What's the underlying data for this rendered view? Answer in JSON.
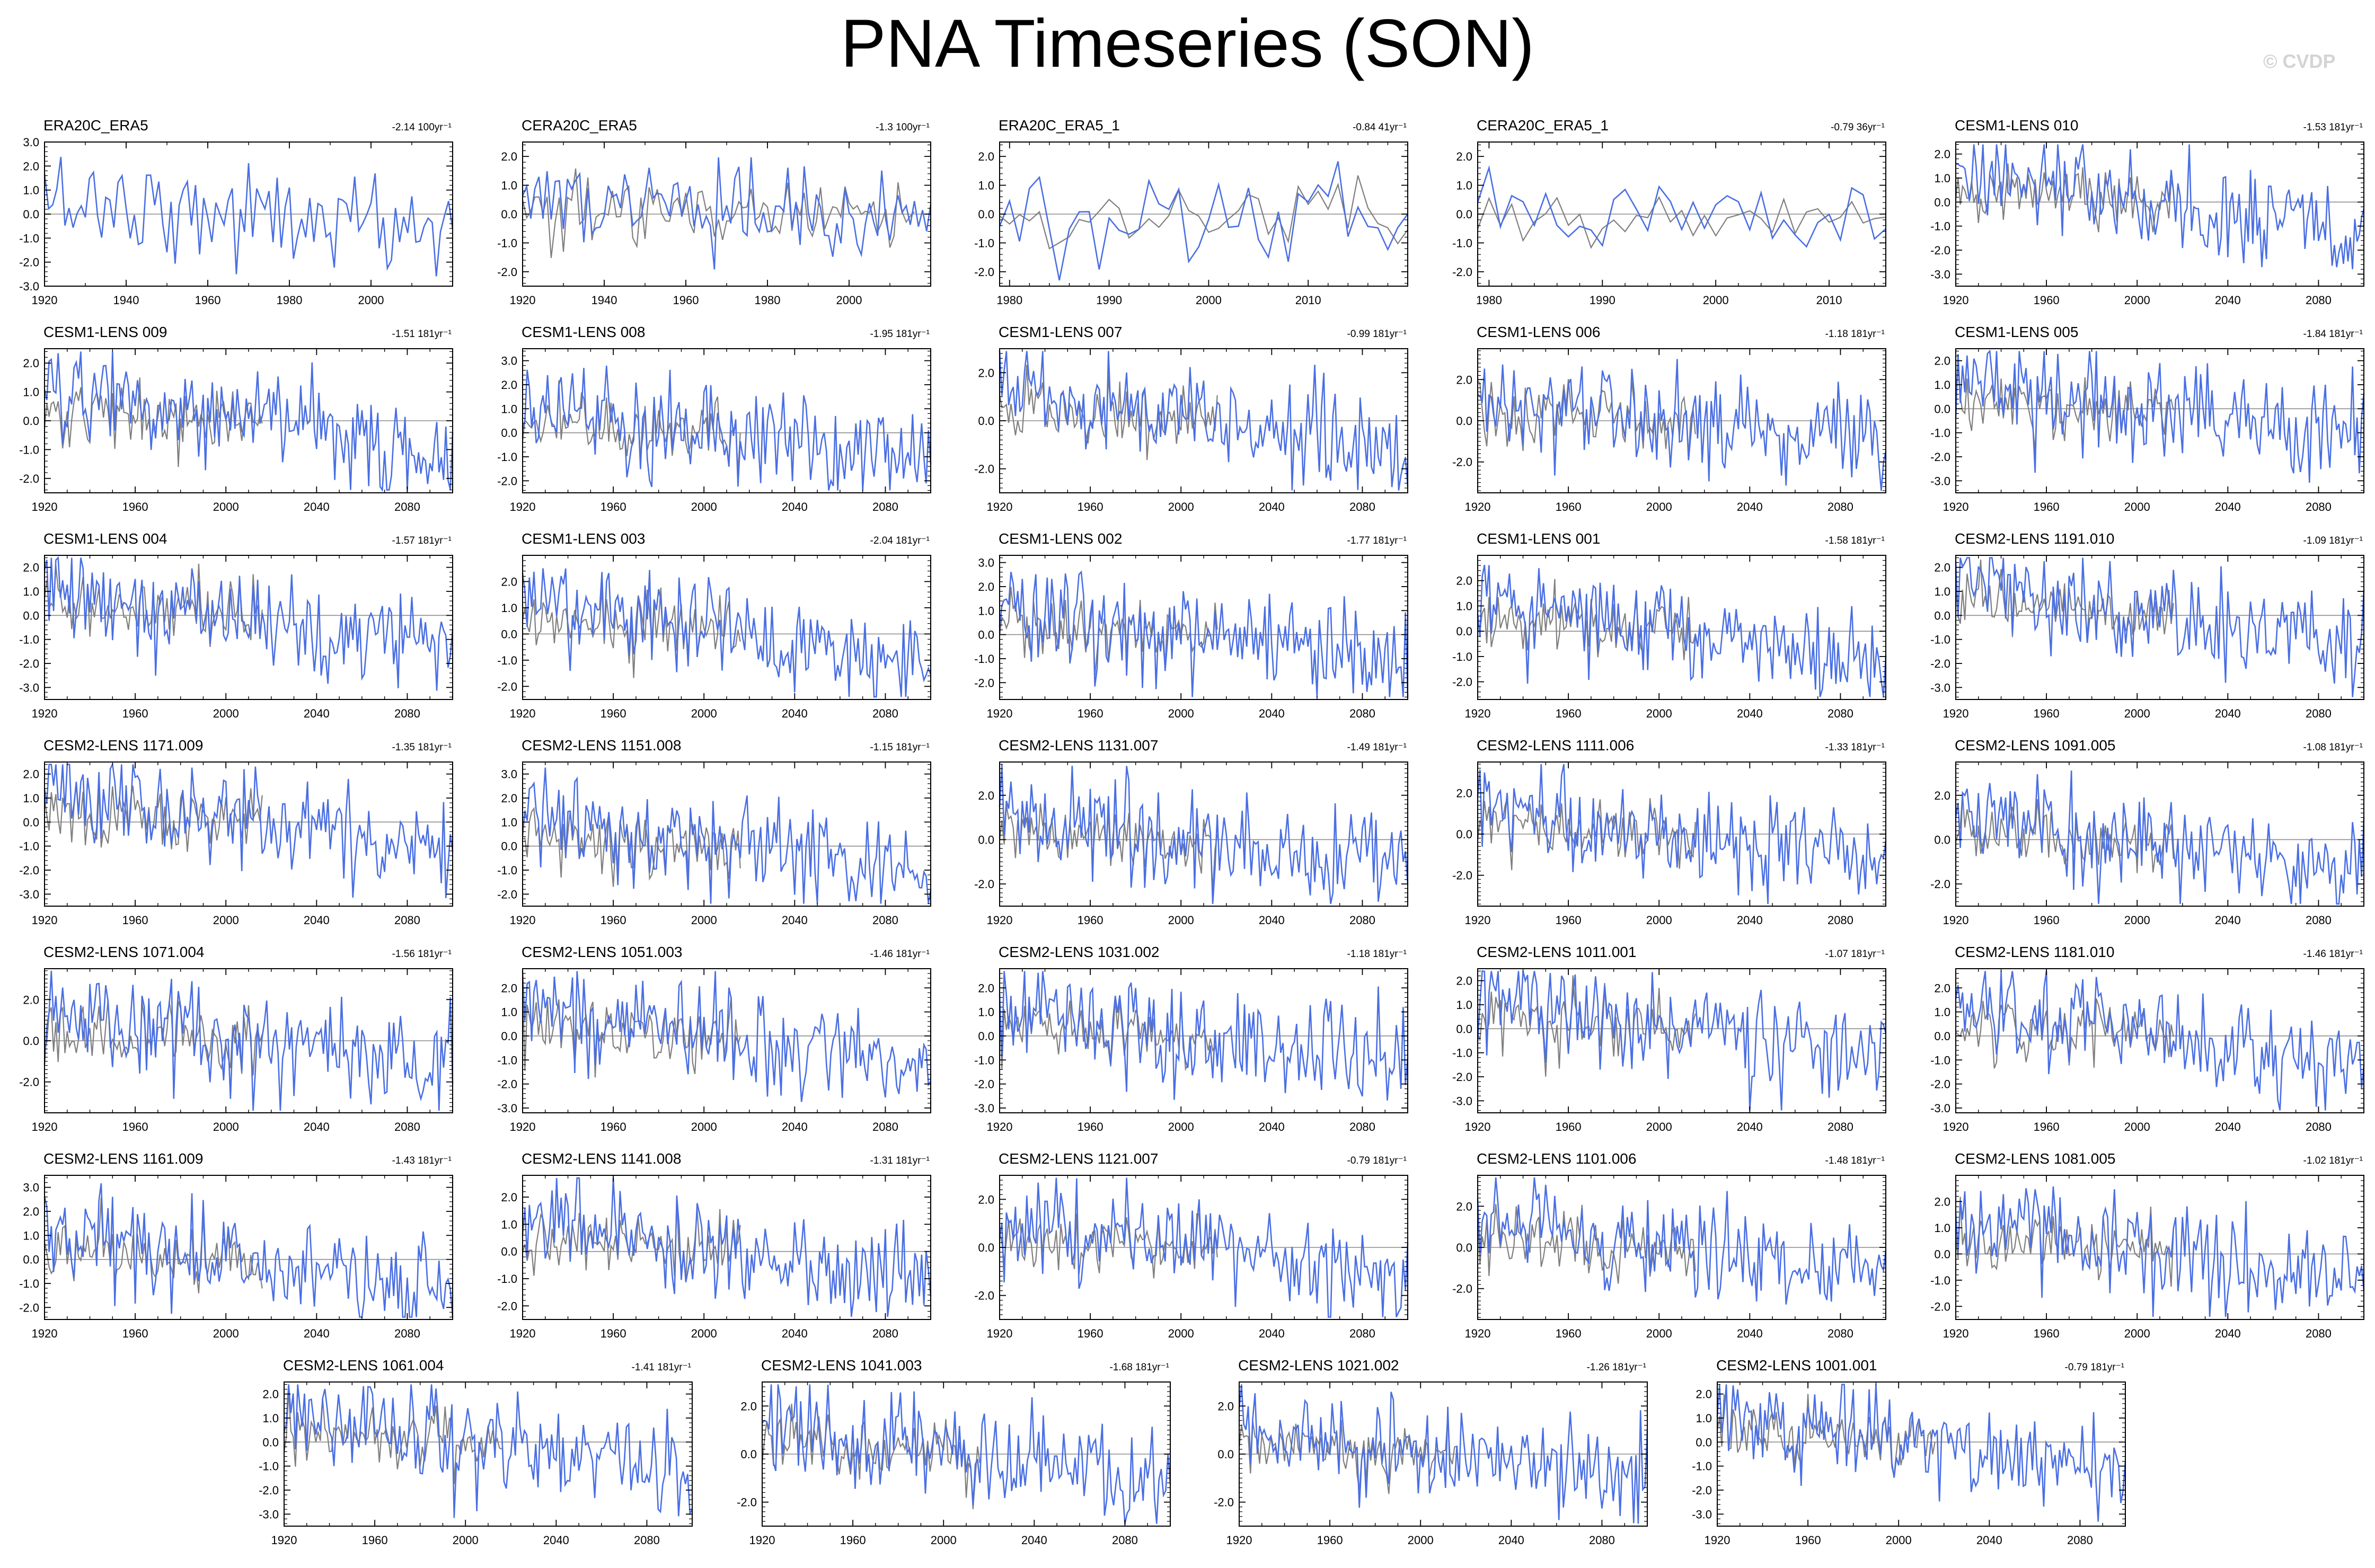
{
  "title": "PNA Timeseries (SON)",
  "watermark": "© CVDP",
  "colors": {
    "series_primary": "#4a6fe3",
    "series_secondary": "#7f7f7f",
    "frame": "#000000",
    "zero_line": "#8c8c8c"
  },
  "chart_data": [
    {
      "type": "line",
      "title": "ERA20C_ERA5",
      "trend": "-2.14 100yr⁻¹",
      "xlim": [
        1920,
        2020
      ],
      "ylim": [
        -3,
        3
      ],
      "xticks": [
        1920,
        1940,
        1960,
        1980,
        2000
      ],
      "yticks": [
        "3.0",
        "2.0",
        "1.0",
        "0.0",
        "-1.0",
        "-2.0",
        "-3.0"
      ],
      "grey_series": false
    },
    {
      "type": "line",
      "title": "CERA20C_ERA5",
      "trend": "-1.3 100yr⁻¹",
      "xlim": [
        1920,
        2020
      ],
      "ylim": [
        -2.5,
        2.5
      ],
      "xticks": [
        1920,
        1940,
        1960,
        1980,
        2000
      ],
      "yticks": [
        "2.0",
        "1.0",
        "0.0",
        "-1.0",
        "-2.0"
      ],
      "grey_series": true
    },
    {
      "type": "line",
      "title": "ERA20C_ERA5_1",
      "trend": "-0.84 41yr⁻¹",
      "xlim": [
        1979,
        2020
      ],
      "ylim": [
        -2.5,
        2.5
      ],
      "xticks": [
        1980,
        1990,
        2000,
        2010
      ],
      "yticks": [
        "2.0",
        "1.0",
        "0.0",
        "-1.0",
        "-2.0"
      ],
      "grey_series": true
    },
    {
      "type": "line",
      "title": "CERA20C_ERA5_1",
      "trend": "-0.79 36yr⁻¹",
      "xlim": [
        1979,
        2015
      ],
      "ylim": [
        -2.5,
        2.5
      ],
      "xticks": [
        1980,
        1990,
        2000,
        2010
      ],
      "yticks": [
        "2.0",
        "1.0",
        "0.0",
        "-1.0",
        "-2.0"
      ],
      "grey_series": true
    },
    {
      "type": "line",
      "title": "CESM1-LENS 010",
      "trend": "-1.53 181yr⁻¹",
      "xlim": [
        1920,
        2100
      ],
      "ylim": [
        -3.5,
        2.5
      ],
      "xticks": [
        1920,
        1960,
        2000,
        2040,
        2080
      ],
      "yticks": [
        "2.0",
        "1.0",
        "0.0",
        "-1.0",
        "-2.0",
        "-3.0"
      ],
      "grey_series": true
    },
    {
      "type": "line",
      "title": "CESM1-LENS 009",
      "trend": "-1.51 181yr⁻¹",
      "xlim": [
        1920,
        2100
      ],
      "ylim": [
        -2.5,
        2.5
      ],
      "xticks": [
        1920,
        1960,
        2000,
        2040,
        2080
      ],
      "yticks": [
        "2.0",
        "1.0",
        "0.0",
        "-1.0",
        "-2.0"
      ],
      "grey_series": true
    },
    {
      "type": "line",
      "title": "CESM1-LENS 008",
      "trend": "-1.95 181yr⁻¹",
      "xlim": [
        1920,
        2100
      ],
      "ylim": [
        -2.5,
        3.5
      ],
      "xticks": [
        1920,
        1960,
        2000,
        2040,
        2080
      ],
      "yticks": [
        "3.0",
        "2.0",
        "1.0",
        "0.0",
        "-1.0",
        "-2.0"
      ],
      "grey_series": true
    },
    {
      "type": "line",
      "title": "CESM1-LENS 007",
      "trend": "-0.99 181yr⁻¹",
      "xlim": [
        1920,
        2100
      ],
      "ylim": [
        -3,
        3
      ],
      "xticks": [
        1920,
        1960,
        2000,
        2040,
        2080
      ],
      "yticks": [
        "2.0",
        "0.0",
        "-2.0"
      ],
      "grey_series": true
    },
    {
      "type": "line",
      "title": "CESM1-LENS 006",
      "trend": "-1.18 181yr⁻¹",
      "xlim": [
        1920,
        2100
      ],
      "ylim": [
        -3.5,
        3.5
      ],
      "xticks": [
        1920,
        1960,
        2000,
        2040,
        2080
      ],
      "yticks": [
        "2.0",
        "0.0",
        "-2.0"
      ],
      "grey_series": true
    },
    {
      "type": "line",
      "title": "CESM1-LENS 005",
      "trend": "-1.84 181yr⁻¹",
      "xlim": [
        1920,
        2100
      ],
      "ylim": [
        -3.5,
        2.5
      ],
      "xticks": [
        1920,
        1960,
        2000,
        2040,
        2080
      ],
      "yticks": [
        "2.0",
        "1.0",
        "0.0",
        "-1.0",
        "-2.0",
        "-3.0"
      ],
      "grey_series": true
    },
    {
      "type": "line",
      "title": "CESM1-LENS 004",
      "trend": "-1.57 181yr⁻¹",
      "xlim": [
        1920,
        2100
      ],
      "ylim": [
        -3.5,
        2.5
      ],
      "xticks": [
        1920,
        1960,
        2000,
        2040,
        2080
      ],
      "yticks": [
        "2.0",
        "1.0",
        "0.0",
        "-1.0",
        "-2.0",
        "-3.0"
      ],
      "grey_series": true
    },
    {
      "type": "line",
      "title": "CESM1-LENS 003",
      "trend": "-2.04 181yr⁻¹",
      "xlim": [
        1920,
        2100
      ],
      "ylim": [
        -2.5,
        3
      ],
      "xticks": [
        1920,
        1960,
        2000,
        2040,
        2080
      ],
      "yticks": [
        "2.0",
        "1.0",
        "0.0",
        "-1.0",
        "-2.0"
      ],
      "grey_series": true
    },
    {
      "type": "line",
      "title": "CESM1-LENS 002",
      "trend": "-1.77 181yr⁻¹",
      "xlim": [
        1920,
        2100
      ],
      "ylim": [
        -2.7,
        3.3
      ],
      "xticks": [
        1920,
        1960,
        2000,
        2040,
        2080
      ],
      "yticks": [
        "3.0",
        "2.0",
        "1.0",
        "0.0",
        "-1.0",
        "-2.0"
      ],
      "grey_series": true
    },
    {
      "type": "line",
      "title": "CESM1-LENS 001",
      "trend": "-1.58 181yr⁻¹",
      "xlim": [
        1920,
        2100
      ],
      "ylim": [
        -2.7,
        3
      ],
      "xticks": [
        1920,
        1960,
        2000,
        2040,
        2080
      ],
      "yticks": [
        "2.0",
        "1.0",
        "0.0",
        "-1.0",
        "-2.0"
      ],
      "grey_series": true
    },
    {
      "type": "line",
      "title": "CESM2-LENS 1191.010",
      "trend": "-1.09 181yr⁻¹",
      "xlim": [
        1920,
        2100
      ],
      "ylim": [
        -3.5,
        2.5
      ],
      "xticks": [
        1920,
        1960,
        2000,
        2040,
        2080
      ],
      "yticks": [
        "2.0",
        "1.0",
        "0.0",
        "-1.0",
        "-2.0",
        "-3.0"
      ],
      "grey_series": true
    },
    {
      "type": "line",
      "title": "CESM2-LENS 1171.009",
      "trend": "-1.35 181yr⁻¹",
      "xlim": [
        1920,
        2100
      ],
      "ylim": [
        -3.5,
        2.5
      ],
      "xticks": [
        1920,
        1960,
        2000,
        2040,
        2080
      ],
      "yticks": [
        "2.0",
        "1.0",
        "0.0",
        "-1.0",
        "-2.0",
        "-3.0"
      ],
      "grey_series": true
    },
    {
      "type": "line",
      "title": "CESM2-LENS 1151.008",
      "trend": "-1.15 181yr⁻¹",
      "xlim": [
        1920,
        2100
      ],
      "ylim": [
        -2.5,
        3.5
      ],
      "xticks": [
        1920,
        1960,
        2000,
        2040,
        2080
      ],
      "yticks": [
        "3.0",
        "2.0",
        "1.0",
        "0.0",
        "-1.0",
        "-2.0"
      ],
      "grey_series": true
    },
    {
      "type": "line",
      "title": "CESM2-LENS 1131.007",
      "trend": "-1.49 181yr⁻¹",
      "xlim": [
        1920,
        2100
      ],
      "ylim": [
        -3,
        3.5
      ],
      "xticks": [
        1920,
        1960,
        2000,
        2040,
        2080
      ],
      "yticks": [
        "2.0",
        "0.0",
        "-2.0"
      ],
      "grey_series": true
    },
    {
      "type": "line",
      "title": "CESM2-LENS 1111.006",
      "trend": "-1.33 181yr⁻¹",
      "xlim": [
        1920,
        2100
      ],
      "ylim": [
        -3.5,
        3.5
      ],
      "xticks": [
        1920,
        1960,
        2000,
        2040,
        2080
      ],
      "yticks": [
        "2.0",
        "0.0",
        "-2.0"
      ],
      "grey_series": true
    },
    {
      "type": "line",
      "title": "CESM2-LENS 1091.005",
      "trend": "-1.08 181yr⁻¹",
      "xlim": [
        1920,
        2100
      ],
      "ylim": [
        -3,
        3.5
      ],
      "xticks": [
        1920,
        1960,
        2000,
        2040,
        2080
      ],
      "yticks": [
        "2.0",
        "0.0",
        "-2.0"
      ],
      "grey_series": true
    },
    {
      "type": "line",
      "title": "CESM2-LENS 1071.004",
      "trend": "-1.56 181yr⁻¹",
      "xlim": [
        1920,
        2100
      ],
      "ylim": [
        -3.5,
        3.5
      ],
      "xticks": [
        1920,
        1960,
        2000,
        2040,
        2080
      ],
      "yticks": [
        "2.0",
        "0.0",
        "-2.0"
      ],
      "grey_series": true
    },
    {
      "type": "line",
      "title": "CESM2-LENS 1051.003",
      "trend": "-1.46 181yr⁻¹",
      "xlim": [
        1920,
        2100
      ],
      "ylim": [
        -3.2,
        2.8
      ],
      "xticks": [
        1920,
        1960,
        2000,
        2040,
        2080
      ],
      "yticks": [
        "2.0",
        "1.0",
        "0.0",
        "-1.0",
        "-2.0",
        "-3.0"
      ],
      "grey_series": true
    },
    {
      "type": "line",
      "title": "CESM2-LENS 1031.002",
      "trend": "-1.18 181yr⁻¹",
      "xlim": [
        1920,
        2100
      ],
      "ylim": [
        -3.2,
        2.8
      ],
      "xticks": [
        1920,
        1960,
        2000,
        2040,
        2080
      ],
      "yticks": [
        "2.0",
        "1.0",
        "0.0",
        "-1.0",
        "-2.0",
        "-3.0"
      ],
      "grey_series": true
    },
    {
      "type": "line",
      "title": "CESM2-LENS 1011.001",
      "trend": "-1.07 181yr⁻¹",
      "xlim": [
        1920,
        2100
      ],
      "ylim": [
        -3.5,
        2.5
      ],
      "xticks": [
        1920,
        1960,
        2000,
        2040,
        2080
      ],
      "yticks": [
        "2.0",
        "1.0",
        "0.0",
        "-1.0",
        "-2.0",
        "-3.0"
      ],
      "grey_series": true
    },
    {
      "type": "line",
      "title": "CESM2-LENS 1181.010",
      "trend": "-1.46 181yr⁻¹",
      "xlim": [
        1920,
        2100
      ],
      "ylim": [
        -3.2,
        2.8
      ],
      "xticks": [
        1920,
        1960,
        2000,
        2040,
        2080
      ],
      "yticks": [
        "2.0",
        "1.0",
        "0.0",
        "-1.0",
        "-2.0",
        "-3.0"
      ],
      "grey_series": true
    },
    {
      "type": "line",
      "title": "CESM2-LENS 1161.009",
      "trend": "-1.43 181yr⁻¹",
      "xlim": [
        1920,
        2100
      ],
      "ylim": [
        -2.5,
        3.5
      ],
      "xticks": [
        1920,
        1960,
        2000,
        2040,
        2080
      ],
      "yticks": [
        "3.0",
        "2.0",
        "1.0",
        "0.0",
        "-1.0",
        "-2.0"
      ],
      "grey_series": true
    },
    {
      "type": "line",
      "title": "CESM2-LENS 1141.008",
      "trend": "-1.31 181yr⁻¹",
      "xlim": [
        1920,
        2100
      ],
      "ylim": [
        -2.5,
        2.8
      ],
      "xticks": [
        1920,
        1960,
        2000,
        2040,
        2080
      ],
      "yticks": [
        "2.0",
        "1.0",
        "0.0",
        "-1.0",
        "-2.0"
      ],
      "grey_series": true
    },
    {
      "type": "line",
      "title": "CESM2-LENS 1121.007",
      "trend": "-0.79 181yr⁻¹",
      "xlim": [
        1920,
        2100
      ],
      "ylim": [
        -3,
        3
      ],
      "xticks": [
        1920,
        1960,
        2000,
        2040,
        2080
      ],
      "yticks": [
        "2.0",
        "0.0",
        "-2.0"
      ],
      "grey_series": true
    },
    {
      "type": "line",
      "title": "CESM2-LENS 1101.006",
      "trend": "-1.48 181yr⁻¹",
      "xlim": [
        1920,
        2100
      ],
      "ylim": [
        -3.5,
        3.5
      ],
      "xticks": [
        1920,
        1960,
        2000,
        2040,
        2080
      ],
      "yticks": [
        "2.0",
        "0.0",
        "-2.0"
      ],
      "grey_series": true
    },
    {
      "type": "line",
      "title": "CESM2-LENS 1081.005",
      "trend": "-1.02 181yr⁻¹",
      "xlim": [
        1920,
        2100
      ],
      "ylim": [
        -2.5,
        3
      ],
      "xticks": [
        1920,
        1960,
        2000,
        2040,
        2080
      ],
      "yticks": [
        "2.0",
        "1.0",
        "0.0",
        "-1.0",
        "-2.0"
      ],
      "grey_series": true
    },
    {
      "type": "line",
      "title": "CESM2-LENS 1061.004",
      "trend": "-1.41 181yr⁻¹",
      "xlim": [
        1920,
        2100
      ],
      "ylim": [
        -3.5,
        2.5
      ],
      "xticks": [
        1920,
        1960,
        2000,
        2040,
        2080
      ],
      "yticks": [
        "2.0",
        "1.0",
        "0.0",
        "-1.0",
        "-2.0",
        "-3.0"
      ],
      "grey_series": true
    },
    {
      "type": "line",
      "title": "CESM2-LENS 1041.003",
      "trend": "-1.68 181yr⁻¹",
      "xlim": [
        1920,
        2100
      ],
      "ylim": [
        -3,
        3
      ],
      "xticks": [
        1920,
        1960,
        2000,
        2040,
        2080
      ],
      "yticks": [
        "2.0",
        "0.0",
        "-2.0"
      ],
      "grey_series": true
    },
    {
      "type": "line",
      "title": "CESM2-LENS 1021.002",
      "trend": "-1.26 181yr⁻¹",
      "xlim": [
        1920,
        2100
      ],
      "ylim": [
        -3,
        3
      ],
      "xticks": [
        1920,
        1960,
        2000,
        2040,
        2080
      ],
      "yticks": [
        "2.0",
        "0.0",
        "-2.0"
      ],
      "grey_series": true
    },
    {
      "type": "line",
      "title": "CESM2-LENS 1001.001",
      "trend": "-0.79 181yr⁻¹",
      "xlim": [
        1920,
        2100
      ],
      "ylim": [
        -3.5,
        2.5
      ],
      "xticks": [
        1920,
        1960,
        2000,
        2040,
        2080
      ],
      "yticks": [
        "2.0",
        "1.0",
        "0.0",
        "-1.0",
        "-2.0",
        "-3.0"
      ],
      "grey_series": true
    }
  ]
}
